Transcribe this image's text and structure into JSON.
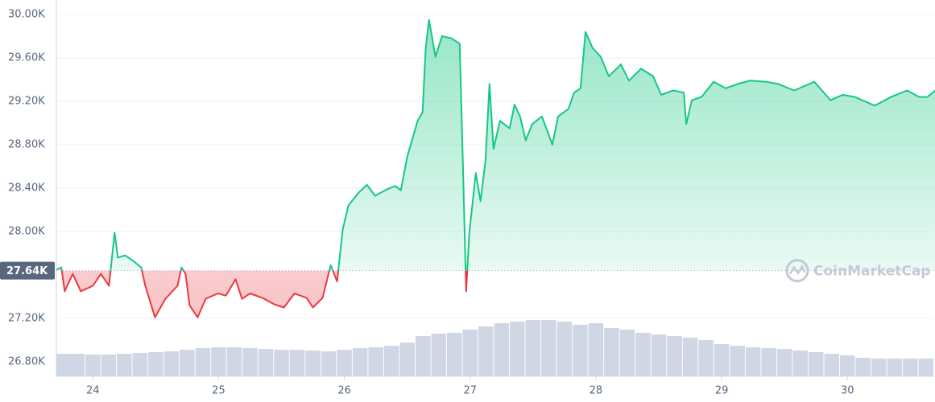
{
  "chart_data": {
    "type": "line",
    "baseline": {
      "value": 27640,
      "label": "27.64K"
    },
    "watermark": "CoinMarketCap",
    "xlim": [
      23.71,
      30.69
    ],
    "xticks": [
      24,
      25,
      26,
      27,
      28,
      29,
      30
    ],
    "ylim": [
      26667,
      30133
    ],
    "yticks": [
      {
        "value": 26800,
        "label": "26.80K"
      },
      {
        "value": 27200,
        "label": "27.20K"
      },
      {
        "value": 28000,
        "label": "28.00K"
      },
      {
        "value": 28400,
        "label": "28.40K"
      },
      {
        "value": 28800,
        "label": "28.80K"
      },
      {
        "value": 29200,
        "label": "29.20K"
      },
      {
        "value": 29600,
        "label": "29.60K"
      },
      {
        "value": 30000,
        "label": "30.00K"
      }
    ],
    "grid": true,
    "up_color": "#16c784",
    "down_color": "#ea3943",
    "x": [
      23.712,
      23.75,
      23.776,
      23.84,
      23.904,
      24.0,
      24.064,
      24.128,
      24.173,
      24.199,
      24.256,
      24.321,
      24.385,
      24.417,
      24.494,
      24.577,
      24.673,
      24.705,
      24.737,
      24.769,
      24.833,
      24.897,
      24.994,
      25.058,
      25.135,
      25.186,
      25.25,
      25.346,
      25.442,
      25.519,
      25.603,
      25.699,
      25.75,
      25.827,
      25.891,
      25.942,
      25.987,
      26.032,
      26.115,
      26.179,
      26.244,
      26.34,
      26.404,
      26.449,
      26.5,
      26.545,
      26.583,
      26.622,
      26.647,
      26.673,
      26.724,
      26.776,
      26.853,
      26.917,
      26.942,
      26.968,
      26.994,
      27.045,
      27.083,
      27.122,
      27.154,
      27.186,
      27.237,
      27.314,
      27.353,
      27.397,
      27.442,
      27.494,
      27.571,
      27.654,
      27.699,
      27.782,
      27.827,
      27.878,
      27.917,
      27.974,
      28.038,
      28.103,
      28.199,
      28.263,
      28.359,
      28.455,
      28.519,
      28.615,
      28.699,
      28.718,
      28.763,
      28.84,
      28.936,
      29.032,
      29.128,
      29.224,
      29.353,
      29.449,
      29.577,
      29.737,
      29.865,
      29.962,
      30.058,
      30.218,
      30.346,
      30.474,
      30.571,
      30.635,
      30.699
    ],
    "series": [
      {
        "values": [
          27650,
          27670,
          27450,
          27610,
          27450,
          27500,
          27610,
          27500,
          27990,
          27760,
          27780,
          27730,
          27670,
          27500,
          27210,
          27380,
          27500,
          27670,
          27610,
          27320,
          27210,
          27380,
          27430,
          27410,
          27560,
          27380,
          27430,
          27390,
          27330,
          27300,
          27430,
          27390,
          27300,
          27390,
          27690,
          27540,
          28020,
          28240,
          28360,
          28430,
          28330,
          28390,
          28420,
          28380,
          28690,
          28870,
          29020,
          29100,
          29690,
          29950,
          29610,
          29800,
          29780,
          29730,
          28650,
          27450,
          27990,
          28540,
          28280,
          28650,
          29360,
          28760,
          29020,
          28950,
          29170,
          29060,
          28840,
          28990,
          29060,
          28800,
          29060,
          29130,
          29280,
          29320,
          29840,
          29690,
          29610,
          29430,
          29540,
          29390,
          29500,
          29430,
          29260,
          29300,
          29280,
          28990,
          29210,
          29240,
          29380,
          29320,
          29360,
          29390,
          29380,
          29360,
          29300,
          29380,
          29210,
          29260,
          29240,
          29160,
          29240,
          29300,
          29240,
          29240,
          29300
        ]
      }
    ],
    "volume": {
      "color": "#cfd6e4",
      "ylim": [
        0,
        100
      ],
      "x": [
        23.75,
        23.875,
        24.0,
        24.125,
        24.25,
        24.375,
        24.5,
        24.625,
        24.75,
        24.875,
        25.0,
        25.125,
        25.25,
        25.375,
        25.5,
        25.625,
        25.75,
        25.875,
        26.0,
        26.125,
        26.25,
        26.375,
        26.5,
        26.625,
        26.75,
        26.875,
        27.0,
        27.125,
        27.25,
        27.375,
        27.5,
        27.625,
        27.75,
        27.875,
        28.0,
        28.125,
        28.25,
        28.375,
        28.5,
        28.625,
        28.75,
        28.875,
        29.0,
        29.125,
        29.25,
        29.375,
        29.5,
        29.625,
        29.75,
        29.875,
        30.0,
        30.125,
        30.25,
        30.375,
        30.5,
        30.625
      ],
      "values": [
        28,
        28,
        27,
        27,
        28,
        29,
        30,
        31,
        33,
        35,
        36,
        36,
        35,
        34,
        33,
        33,
        32,
        31,
        33,
        35,
        36,
        38,
        42,
        50,
        53,
        54,
        58,
        62,
        66,
        68,
        70,
        70,
        68,
        64,
        66,
        60,
        58,
        54,
        52,
        50,
        48,
        45,
        40,
        38,
        36,
        35,
        34,
        32,
        30,
        28,
        26,
        23,
        22,
        22,
        22,
        22
      ]
    }
  }
}
